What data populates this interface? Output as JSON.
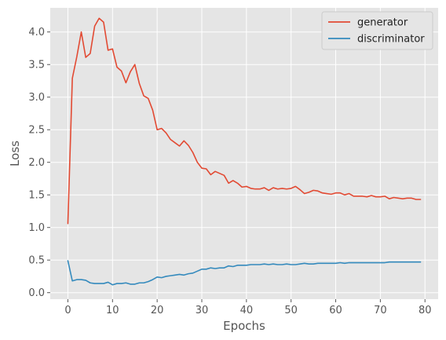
{
  "chart_data": {
    "type": "line",
    "title": "",
    "xlabel": "Epochs",
    "ylabel": "Loss",
    "xlim": [
      -3.95,
      82.95
    ],
    "ylim": [
      -0.1,
      4.37
    ],
    "xticks": [
      0,
      10,
      20,
      30,
      40,
      50,
      60,
      70,
      80
    ],
    "xtick_labels": [
      "0",
      "10",
      "20",
      "30",
      "40",
      "50",
      "60",
      "70",
      "80"
    ],
    "yticks": [
      0.0,
      0.5,
      1.0,
      1.5,
      2.0,
      2.5,
      3.0,
      3.5,
      4.0
    ],
    "ytick_labels": [
      "0.0",
      "0.5",
      "1.0",
      "1.5",
      "2.0",
      "2.5",
      "3.0",
      "3.5",
      "4.0"
    ],
    "grid": true,
    "legend_position": "top-right",
    "x": [
      0,
      1,
      2,
      3,
      4,
      5,
      6,
      7,
      8,
      9,
      10,
      11,
      12,
      13,
      14,
      15,
      16,
      17,
      18,
      19,
      20,
      21,
      22,
      23,
      24,
      25,
      26,
      27,
      28,
      29,
      30,
      31,
      32,
      33,
      34,
      35,
      36,
      37,
      38,
      39,
      40,
      41,
      42,
      43,
      44,
      45,
      46,
      47,
      48,
      49,
      50,
      51,
      52,
      53,
      54,
      55,
      56,
      57,
      58,
      59,
      60,
      61,
      62,
      63,
      64,
      65,
      66,
      67,
      68,
      69,
      70,
      71,
      72,
      73,
      74,
      75,
      76,
      77,
      78,
      79
    ],
    "series": [
      {
        "name": "generator",
        "color": "#E24A33",
        "values": [
          1.06,
          3.29,
          3.62,
          4.0,
          3.61,
          3.67,
          4.09,
          4.21,
          4.15,
          3.72,
          3.74,
          3.46,
          3.4,
          3.22,
          3.39,
          3.5,
          3.21,
          3.02,
          2.98,
          2.8,
          2.5,
          2.52,
          2.45,
          2.35,
          2.3,
          2.25,
          2.33,
          2.26,
          2.15,
          2.0,
          1.91,
          1.9,
          1.81,
          1.86,
          1.83,
          1.8,
          1.68,
          1.72,
          1.68,
          1.62,
          1.63,
          1.6,
          1.59,
          1.59,
          1.61,
          1.57,
          1.61,
          1.59,
          1.6,
          1.59,
          1.6,
          1.63,
          1.58,
          1.52,
          1.54,
          1.57,
          1.56,
          1.53,
          1.52,
          1.51,
          1.53,
          1.53,
          1.5,
          1.52,
          1.48,
          1.48,
          1.48,
          1.47,
          1.49,
          1.47,
          1.47,
          1.48,
          1.44,
          1.46,
          1.45,
          1.44,
          1.45,
          1.45,
          1.43,
          1.43
        ]
      },
      {
        "name": "discriminator",
        "color": "#348ABD",
        "values": [
          0.49,
          0.18,
          0.2,
          0.2,
          0.19,
          0.15,
          0.14,
          0.14,
          0.14,
          0.16,
          0.12,
          0.14,
          0.14,
          0.15,
          0.13,
          0.13,
          0.15,
          0.15,
          0.17,
          0.2,
          0.24,
          0.23,
          0.25,
          0.26,
          0.27,
          0.28,
          0.27,
          0.29,
          0.3,
          0.33,
          0.36,
          0.36,
          0.38,
          0.37,
          0.38,
          0.38,
          0.41,
          0.4,
          0.42,
          0.42,
          0.42,
          0.43,
          0.43,
          0.43,
          0.44,
          0.43,
          0.44,
          0.43,
          0.43,
          0.44,
          0.43,
          0.43,
          0.44,
          0.45,
          0.44,
          0.44,
          0.45,
          0.45,
          0.45,
          0.45,
          0.45,
          0.46,
          0.45,
          0.46,
          0.46,
          0.46,
          0.46,
          0.46,
          0.46,
          0.46,
          0.46,
          0.46,
          0.47,
          0.47,
          0.47,
          0.47,
          0.47,
          0.47,
          0.47,
          0.47
        ]
      }
    ]
  },
  "style": {
    "plot_bg": "#E5E5E5",
    "grid_color": "#FFFFFF",
    "text_color": "#555555"
  }
}
